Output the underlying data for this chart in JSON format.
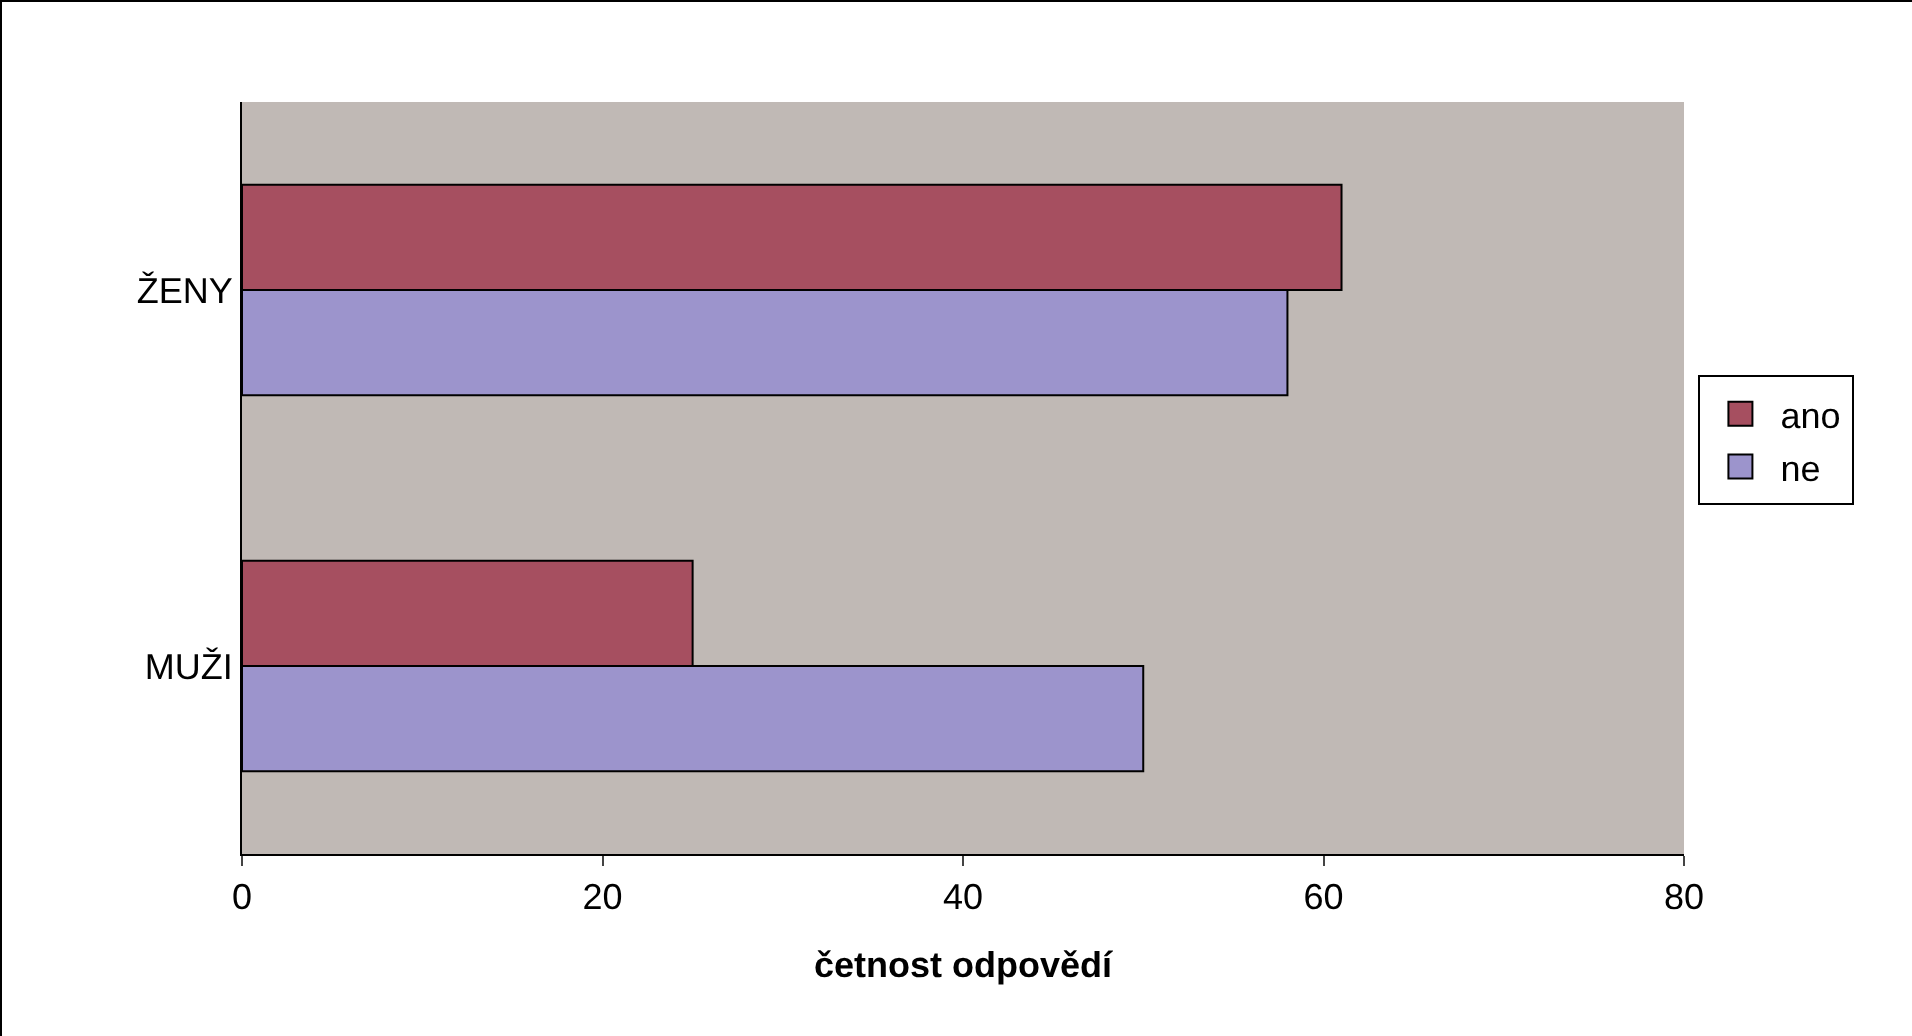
{
  "chart_data": {
    "type": "bar",
    "orientation": "horizontal",
    "xlabel": "četnost odpovědí",
    "categories": [
      "ŽENY",
      "MUŽI"
    ],
    "series": [
      {
        "name": "ano",
        "color": "#a64f60",
        "values": [
          61,
          25
        ]
      },
      {
        "name": "ne",
        "color": "#9c94cc",
        "values": [
          58,
          50
        ]
      }
    ],
    "xlim": [
      0,
      80
    ],
    "xticks": [
      0,
      20,
      40,
      60,
      80
    ],
    "grid": false,
    "legend": "right"
  }
}
